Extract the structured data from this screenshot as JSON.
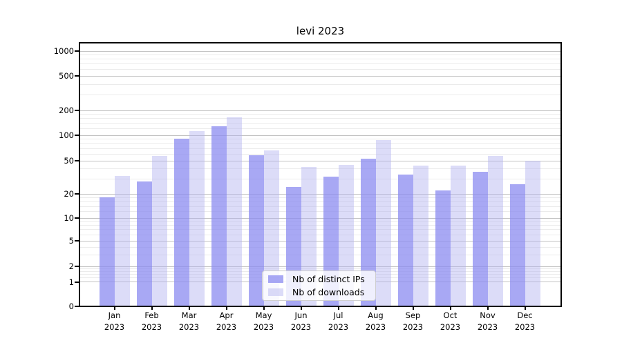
{
  "title": "levi 2023",
  "chart_data": {
    "type": "bar",
    "title": "levi 2023",
    "categories": [
      "Jan 2023",
      "Feb 2023",
      "Mar 2023",
      "Apr 2023",
      "May 2023",
      "Jun 2023",
      "Jul 2023",
      "Aug 2023",
      "Sep 2023",
      "Oct 2023",
      "Nov 2023",
      "Dec 2023"
    ],
    "series": [
      {
        "name": "Nb of distinct IPs",
        "color": "rgba(139,139,240,0.75)",
        "approx_solid": "#a8a8f4",
        "values": [
          18,
          28,
          91,
          128,
          58,
          24,
          32,
          53,
          34,
          22,
          37,
          26
        ]
      },
      {
        "name": "Nb of downloads",
        "color": "rgba(177,177,240,0.45)",
        "approx_solid": "#dcdcf8",
        "values": [
          33,
          57,
          112,
          165,
          66,
          42,
          45,
          88,
          44,
          44,
          57,
          50
        ]
      }
    ],
    "xlabel": "",
    "ylabel": "",
    "yscale": "log-like (0,1,2,5 sequence, linear 0-1 segment)",
    "yticks_major": [
      0,
      1,
      2,
      5,
      10,
      20,
      50,
      100,
      200,
      500,
      1000
    ],
    "yticks_minor": [
      1.2,
      1.4,
      1.6,
      1.8,
      3,
      4,
      6,
      7,
      8,
      9,
      12,
      14,
      16,
      18,
      30,
      40,
      60,
      70,
      80,
      90,
      120,
      140,
      160,
      180,
      300,
      400,
      600,
      700,
      800,
      900
    ],
    "ylim": [
      0,
      1250
    ],
    "grid": true,
    "legend_position": "lower center"
  },
  "legend": {
    "items": [
      "Nb of distinct IPs",
      "Nb of downloads"
    ]
  },
  "colors": {
    "bar_dark": "#a8a8f4",
    "bar_light": "#dcdcf8",
    "grid_major": "#c2c2c2",
    "grid_minor": "#ebebeb",
    "axis": "#000000",
    "background": "#ffffff"
  }
}
